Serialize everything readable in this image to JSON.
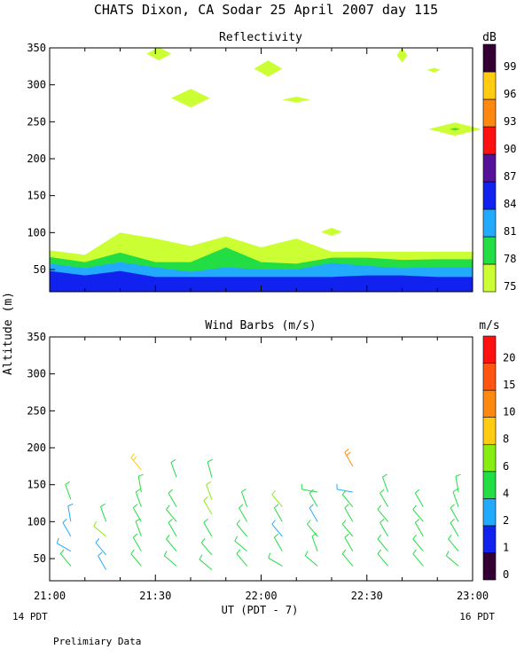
{
  "title": "CHATS Dixon, CA  Sodar  25 April 2007  day 115",
  "ylabel": "Altitude (m)",
  "xlabel": "UT  (PDT - 7)",
  "left_note": "14 PDT",
  "right_note": "16 PDT",
  "footer": "Prelimiary Data",
  "x_ticks": [
    "21:00",
    "21:30",
    "22:00",
    "22:30",
    "23:00"
  ],
  "chart_data": [
    {
      "type": "heatmap",
      "title": "Reflectivity",
      "xlim": [
        0,
        120
      ],
      "ylim": [
        20,
        350
      ],
      "yticks": [
        50,
        100,
        150,
        200,
        250,
        300,
        350
      ],
      "colorbar": {
        "unit": "dB",
        "levels": [
          75,
          78,
          81,
          84,
          87,
          90,
          93,
          96,
          99
        ],
        "colors": [
          "#ccff33",
          "#22dd44",
          "#22aaff",
          "#1122ee",
          "#551199",
          "#ff1111",
          "#ff8811",
          "#ffcc11",
          "#330033"
        ]
      },
      "bands": [
        {
          "level": 75,
          "x": [
            0,
            10,
            20,
            30,
            40,
            50,
            60,
            70,
            80,
            90,
            100,
            110,
            120
          ],
          "y": [
            76,
            70,
            100,
            92,
            82,
            95,
            80,
            92,
            74,
            74,
            74,
            74,
            74
          ]
        },
        {
          "level": 78,
          "x": [
            0,
            10,
            20,
            30,
            40,
            50,
            60,
            70,
            80,
            90,
            100,
            110,
            120
          ],
          "y": [
            67,
            60,
            73,
            60,
            60,
            80,
            60,
            58,
            66,
            66,
            63,
            64,
            64
          ]
        },
        {
          "level": 81,
          "x": [
            0,
            10,
            20,
            30,
            40,
            50,
            60,
            70,
            80,
            90,
            100,
            110,
            120
          ],
          "y": [
            58,
            52,
            60,
            53,
            47,
            53,
            50,
            50,
            59,
            55,
            52,
            53,
            53
          ]
        },
        {
          "level": 84,
          "x": [
            0,
            10,
            20,
            30,
            40,
            50,
            60,
            70,
            80,
            90,
            100,
            110,
            120
          ],
          "y": [
            48,
            42,
            48,
            40,
            40,
            40,
            40,
            40,
            40,
            42,
            42,
            40,
            40
          ]
        }
      ],
      "patches": [
        {
          "level": 75,
          "cx": 31,
          "cy": 342,
          "w": 7,
          "h": 18
        },
        {
          "level": 75,
          "cx": 40,
          "cy": 282,
          "w": 11,
          "h": 25
        },
        {
          "level": 75,
          "cx": 62,
          "cy": 322,
          "w": 8,
          "h": 22
        },
        {
          "level": 75,
          "cx": 70,
          "cy": 280,
          "w": 8,
          "h": 8
        },
        {
          "level": 75,
          "cx": 80,
          "cy": 101,
          "w": 6,
          "h": 11
        },
        {
          "level": 75,
          "cx": 100,
          "cy": 340,
          "w": 3,
          "h": 20
        },
        {
          "level": 75,
          "cx": 109,
          "cy": 320,
          "w": 4,
          "h": 6
        },
        {
          "level": 75,
          "cx": 115,
          "cy": 240,
          "w": 15,
          "h": 18
        },
        {
          "level": 78,
          "cx": 115,
          "cy": 240,
          "w": 3,
          "h": 3
        }
      ]
    },
    {
      "type": "scatter",
      "title": "Wind Barbs (m/s)",
      "xlim": [
        0,
        120
      ],
      "ylim": [
        20,
        350
      ],
      "yticks": [
        50,
        100,
        150,
        200,
        250,
        300,
        350
      ],
      "colorbar": {
        "unit": "m/s",
        "labels": [
          "0",
          "1",
          "2",
          "4",
          "6",
          "8",
          "10",
          "15",
          "20"
        ],
        "colors": [
          "#330033",
          "#1122ee",
          "#22aaff",
          "#22dd44",
          "#88ee11",
          "#ffcc11",
          "#ff8811",
          "#ff5511",
          "#ff1111"
        ]
      },
      "barbs": [
        {
          "x": 6,
          "y": 130,
          "spd": 4,
          "dir": 340
        },
        {
          "x": 6,
          "y": 100,
          "spd": 2,
          "dir": 350
        },
        {
          "x": 6,
          "y": 80,
          "spd": 3,
          "dir": 330
        },
        {
          "x": 6,
          "y": 60,
          "spd": 3,
          "dir": 300
        },
        {
          "x": 6,
          "y": 40,
          "spd": 4,
          "dir": 320
        },
        {
          "x": 16,
          "y": 100,
          "spd": 4,
          "dir": 340
        },
        {
          "x": 16,
          "y": 80,
          "spd": 7,
          "dir": 310
        },
        {
          "x": 16,
          "y": 55,
          "spd": 3,
          "dir": 320
        },
        {
          "x": 16,
          "y": 35,
          "spd": 3,
          "dir": 330
        },
        {
          "x": 26,
          "y": 170,
          "spd": 9,
          "dir": 320
        },
        {
          "x": 26,
          "y": 140,
          "spd": 4,
          "dir": 350
        },
        {
          "x": 26,
          "y": 120,
          "spd": 5,
          "dir": 340
        },
        {
          "x": 26,
          "y": 100,
          "spd": 5,
          "dir": 330
        },
        {
          "x": 26,
          "y": 80,
          "spd": 4,
          "dir": 340
        },
        {
          "x": 26,
          "y": 60,
          "spd": 4,
          "dir": 330
        },
        {
          "x": 26,
          "y": 40,
          "spd": 5,
          "dir": 320
        },
        {
          "x": 36,
          "y": 160,
          "spd": 5,
          "dir": 340
        },
        {
          "x": 36,
          "y": 120,
          "spd": 4,
          "dir": 330
        },
        {
          "x": 36,
          "y": 100,
          "spd": 5,
          "dir": 320
        },
        {
          "x": 36,
          "y": 80,
          "spd": 5,
          "dir": 330
        },
        {
          "x": 36,
          "y": 60,
          "spd": 4,
          "dir": 320
        },
        {
          "x": 36,
          "y": 40,
          "spd": 4,
          "dir": 310
        },
        {
          "x": 46,
          "y": 160,
          "spd": 5,
          "dir": 345
        },
        {
          "x": 46,
          "y": 130,
          "spd": 6,
          "dir": 340
        },
        {
          "x": 46,
          "y": 110,
          "spd": 7,
          "dir": 330
        },
        {
          "x": 46,
          "y": 80,
          "spd": 4,
          "dir": 330
        },
        {
          "x": 46,
          "y": 55,
          "spd": 4,
          "dir": 320
        },
        {
          "x": 46,
          "y": 35,
          "spd": 5,
          "dir": 310
        },
        {
          "x": 56,
          "y": 120,
          "spd": 4,
          "dir": 340
        },
        {
          "x": 56,
          "y": 100,
          "spd": 4,
          "dir": 330
        },
        {
          "x": 56,
          "y": 80,
          "spd": 4,
          "dir": 320
        },
        {
          "x": 56,
          "y": 60,
          "spd": 5,
          "dir": 310
        },
        {
          "x": 56,
          "y": 40,
          "spd": 5,
          "dir": 320
        },
        {
          "x": 66,
          "y": 120,
          "spd": 7,
          "dir": 320
        },
        {
          "x": 66,
          "y": 100,
          "spd": 4,
          "dir": 330
        },
        {
          "x": 66,
          "y": 80,
          "spd": 3,
          "dir": 320
        },
        {
          "x": 66,
          "y": 60,
          "spd": 4,
          "dir": 330
        },
        {
          "x": 66,
          "y": 40,
          "spd": 5,
          "dir": 300
        },
        {
          "x": 76,
          "y": 140,
          "spd": 5,
          "dir": 280
        },
        {
          "x": 76,
          "y": 120,
          "spd": 4,
          "dir": 330
        },
        {
          "x": 76,
          "y": 100,
          "spd": 3,
          "dir": 330
        },
        {
          "x": 76,
          "y": 80,
          "spd": 4,
          "dir": 320
        },
        {
          "x": 76,
          "y": 60,
          "spd": 4,
          "dir": 340
        },
        {
          "x": 76,
          "y": 40,
          "spd": 4,
          "dir": 310
        },
        {
          "x": 86,
          "y": 175,
          "spd": 10,
          "dir": 330
        },
        {
          "x": 86,
          "y": 140,
          "spd": 2,
          "dir": 280
        },
        {
          "x": 86,
          "y": 120,
          "spd": 4,
          "dir": 320
        },
        {
          "x": 86,
          "y": 100,
          "spd": 4,
          "dir": 330
        },
        {
          "x": 86,
          "y": 80,
          "spd": 5,
          "dir": 320
        },
        {
          "x": 86,
          "y": 60,
          "spd": 4,
          "dir": 330
        },
        {
          "x": 86,
          "y": 40,
          "spd": 5,
          "dir": 320
        },
        {
          "x": 96,
          "y": 140,
          "spd": 4,
          "dir": 340
        },
        {
          "x": 96,
          "y": 120,
          "spd": 5,
          "dir": 330
        },
        {
          "x": 96,
          "y": 100,
          "spd": 4,
          "dir": 320
        },
        {
          "x": 96,
          "y": 80,
          "spd": 4,
          "dir": 330
        },
        {
          "x": 96,
          "y": 60,
          "spd": 4,
          "dir": 320
        },
        {
          "x": 96,
          "y": 40,
          "spd": 4,
          "dir": 320
        },
        {
          "x": 106,
          "y": 120,
          "spd": 4,
          "dir": 330
        },
        {
          "x": 106,
          "y": 100,
          "spd": 5,
          "dir": 320
        },
        {
          "x": 106,
          "y": 80,
          "spd": 4,
          "dir": 330
        },
        {
          "x": 106,
          "y": 60,
          "spd": 4,
          "dir": 320
        },
        {
          "x": 106,
          "y": 40,
          "spd": 5,
          "dir": 320
        },
        {
          "x": 116,
          "y": 140,
          "spd": 4,
          "dir": 350
        },
        {
          "x": 116,
          "y": 120,
          "spd": 5,
          "dir": 340
        },
        {
          "x": 116,
          "y": 100,
          "spd": 5,
          "dir": 330
        },
        {
          "x": 116,
          "y": 80,
          "spd": 4,
          "dir": 330
        },
        {
          "x": 116,
          "y": 60,
          "spd": 4,
          "dir": 320
        },
        {
          "x": 116,
          "y": 40,
          "spd": 5,
          "dir": 310
        }
      ]
    }
  ]
}
